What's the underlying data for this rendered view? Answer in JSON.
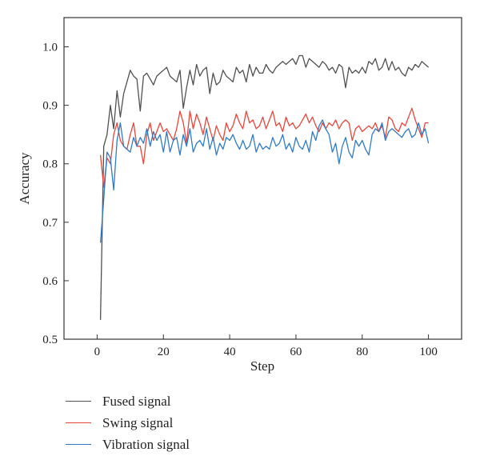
{
  "chart_data": {
    "type": "line",
    "title": "",
    "xlabel": "Step",
    "ylabel": "Accuracy",
    "xlim": [
      -10,
      110
    ],
    "ylim": [
      0.5,
      1.05
    ],
    "xticks": [
      0,
      20,
      40,
      60,
      80,
      100
    ],
    "yticks": [
      0.5,
      0.6,
      0.7,
      0.8,
      0.9,
      1.0
    ],
    "xtick_labels": [
      "0",
      "20",
      "40",
      "60",
      "80",
      "100"
    ],
    "ytick_labels": [
      "0.5",
      "0.6",
      "0.7",
      "0.8",
      "0.9",
      "1.0"
    ],
    "grid": false,
    "legend_position": "below",
    "x": [
      1,
      2,
      3,
      4,
      5,
      6,
      7,
      8,
      9,
      10,
      11,
      12,
      13,
      14,
      15,
      16,
      17,
      18,
      19,
      20,
      21,
      22,
      23,
      24,
      25,
      26,
      27,
      28,
      29,
      30,
      31,
      32,
      33,
      34,
      35,
      36,
      37,
      38,
      39,
      40,
      41,
      42,
      43,
      44,
      45,
      46,
      47,
      48,
      49,
      50,
      51,
      52,
      53,
      54,
      55,
      56,
      57,
      58,
      59,
      60,
      61,
      62,
      63,
      64,
      65,
      66,
      67,
      68,
      69,
      70,
      71,
      72,
      73,
      74,
      75,
      76,
      77,
      78,
      79,
      80,
      81,
      82,
      83,
      84,
      85,
      86,
      87,
      88,
      89,
      90,
      91,
      92,
      93,
      94,
      95,
      96,
      97,
      98,
      99,
      100
    ],
    "series": [
      {
        "name": "Fused signal",
        "color": "#505050",
        "values": [
          0.533,
          0.83,
          0.85,
          0.9,
          0.86,
          0.925,
          0.88,
          0.92,
          0.94,
          0.96,
          0.95,
          0.945,
          0.89,
          0.95,
          0.955,
          0.945,
          0.935,
          0.95,
          0.955,
          0.96,
          0.965,
          0.95,
          0.945,
          0.94,
          0.96,
          0.895,
          0.93,
          0.96,
          0.935,
          0.97,
          0.95,
          0.96,
          0.965,
          0.92,
          0.955,
          0.935,
          0.94,
          0.96,
          0.95,
          0.945,
          0.94,
          0.965,
          0.955,
          0.96,
          0.94,
          0.97,
          0.95,
          0.965,
          0.955,
          0.955,
          0.97,
          0.96,
          0.955,
          0.965,
          0.97,
          0.975,
          0.97,
          0.975,
          0.98,
          0.97,
          0.985,
          0.985,
          0.965,
          0.98,
          0.975,
          0.97,
          0.965,
          0.975,
          0.97,
          0.96,
          0.965,
          0.955,
          0.97,
          0.965,
          0.93,
          0.965,
          0.955,
          0.96,
          0.955,
          0.965,
          0.955,
          0.975,
          0.97,
          0.98,
          0.96,
          0.965,
          0.98,
          0.96,
          0.975,
          0.96,
          0.965,
          0.955,
          0.95,
          0.965,
          0.96,
          0.97,
          0.965,
          0.975,
          0.97,
          0.965
        ]
      },
      {
        "name": "Swing signal",
        "color": "#e8463a",
        "values": [
          0.815,
          0.76,
          0.81,
          0.8,
          0.85,
          0.87,
          0.84,
          0.83,
          0.825,
          0.85,
          0.87,
          0.83,
          0.83,
          0.8,
          0.85,
          0.87,
          0.84,
          0.855,
          0.87,
          0.855,
          0.86,
          0.85,
          0.84,
          0.86,
          0.89,
          0.87,
          0.835,
          0.89,
          0.86,
          0.885,
          0.87,
          0.85,
          0.88,
          0.86,
          0.84,
          0.865,
          0.85,
          0.84,
          0.87,
          0.855,
          0.865,
          0.885,
          0.87,
          0.86,
          0.89,
          0.87,
          0.875,
          0.86,
          0.865,
          0.88,
          0.86,
          0.875,
          0.89,
          0.865,
          0.87,
          0.855,
          0.88,
          0.865,
          0.87,
          0.86,
          0.865,
          0.875,
          0.885,
          0.87,
          0.88,
          0.865,
          0.855,
          0.87,
          0.86,
          0.87,
          0.865,
          0.875,
          0.86,
          0.87,
          0.875,
          0.87,
          0.84,
          0.86,
          0.865,
          0.855,
          0.86,
          0.865,
          0.86,
          0.87,
          0.855,
          0.865,
          0.845,
          0.88,
          0.875,
          0.86,
          0.855,
          0.87,
          0.865,
          0.88,
          0.895,
          0.875,
          0.86,
          0.845,
          0.87,
          0.87
        ]
      },
      {
        "name": "Vibration signal",
        "color": "#2e7bc6",
        "values": [
          0.665,
          0.74,
          0.82,
          0.81,
          0.755,
          0.84,
          0.87,
          0.83,
          0.825,
          0.82,
          0.845,
          0.83,
          0.845,
          0.835,
          0.86,
          0.83,
          0.855,
          0.84,
          0.85,
          0.82,
          0.855,
          0.82,
          0.84,
          0.845,
          0.815,
          0.85,
          0.83,
          0.86,
          0.82,
          0.835,
          0.84,
          0.83,
          0.86,
          0.825,
          0.845,
          0.815,
          0.835,
          0.825,
          0.845,
          0.84,
          0.85,
          0.835,
          0.825,
          0.84,
          0.825,
          0.83,
          0.85,
          0.82,
          0.835,
          0.825,
          0.83,
          0.825,
          0.845,
          0.83,
          0.835,
          0.85,
          0.825,
          0.835,
          0.82,
          0.845,
          0.83,
          0.825,
          0.84,
          0.82,
          0.855,
          0.84,
          0.865,
          0.875,
          0.86,
          0.85,
          0.82,
          0.835,
          0.8,
          0.83,
          0.845,
          0.82,
          0.81,
          0.84,
          0.83,
          0.84,
          0.825,
          0.815,
          0.85,
          0.86,
          0.855,
          0.87,
          0.84,
          0.855,
          0.86,
          0.855,
          0.85,
          0.845,
          0.855,
          0.86,
          0.845,
          0.85,
          0.87,
          0.85,
          0.86,
          0.835
        ]
      }
    ]
  }
}
